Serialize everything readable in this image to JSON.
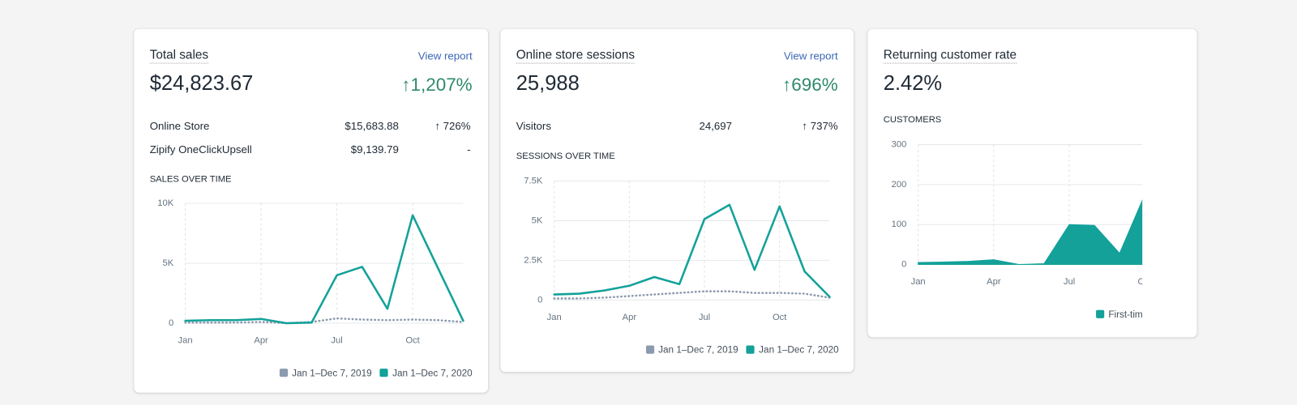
{
  "cards": [
    {
      "title": "Total sales",
      "link": "View report",
      "value": "$24,823.67",
      "change": "↑1,207%",
      "rows": [
        {
          "label": "Online Store",
          "amount": "$15,683.88",
          "change": "↑ 726%"
        },
        {
          "label": "Zipify OneClickUpsell",
          "amount": "$9,139.79",
          "change": "-"
        }
      ],
      "chart_label": "SALES OVER TIME",
      "chart": {
        "type": "line",
        "categories": [
          "Jan",
          null,
          null,
          "Apr",
          null,
          null,
          "Jul",
          null,
          null,
          "Oct",
          null,
          null
        ],
        "series": [
          {
            "name": "Jan 1–Dec 7, 2019",
            "color": "#8c9aad",
            "style": "dotted",
            "values": [
              50,
              50,
              50,
              100,
              0,
              100,
              400,
              300,
              250,
              300,
              250,
              100
            ]
          },
          {
            "name": "Jan 1–Dec 7, 2020",
            "color": "#13a19a",
            "style": "solid",
            "values": [
              200,
              250,
              250,
              350,
              0,
              50,
              4000,
              4700,
              1200,
              9000,
              4600,
              200
            ]
          }
        ],
        "ylim": [
          0,
          10000
        ],
        "yticks": [
          0,
          {
            "value": 5000,
            "label": "5K"
          },
          {
            "value": 10000,
            "label": "10K"
          }
        ],
        "grid": true
      }
    },
    {
      "title": "Online store sessions",
      "link": "View report",
      "value": "25,988",
      "change": "↑696%",
      "rows": [
        {
          "label": "Visitors",
          "amount": "24,697",
          "change": "↑ 737%"
        }
      ],
      "chart_label": "SESSIONS OVER TIME",
      "chart": {
        "type": "line",
        "categories": [
          "Jan",
          null,
          null,
          "Apr",
          null,
          null,
          "Jul",
          null,
          null,
          "Oct",
          null,
          null
        ],
        "series": [
          {
            "name": "Jan 1–Dec 7, 2019",
            "color": "#8c9aad",
            "style": "dotted",
            "values": [
              100,
              100,
              150,
              250,
              350,
              450,
              550,
              550,
              450,
              450,
              400,
              150
            ]
          },
          {
            "name": "Jan 1–Dec 7, 2020",
            "color": "#13a19a",
            "style": "solid",
            "values": [
              350,
              400,
              600,
              900,
              1450,
              1000,
              5100,
              6000,
              1900,
              5900,
              1800,
              200
            ]
          }
        ],
        "ylim": [
          0,
          7500
        ],
        "yticks": [
          0,
          {
            "value": 2500,
            "label": "2.5K"
          },
          {
            "value": 5000,
            "label": "5K"
          },
          {
            "value": 7500,
            "label": "7.5K"
          }
        ],
        "grid": true
      }
    },
    {
      "title": "Returning customer rate",
      "value": "2.42%",
      "rows": [],
      "chart_label": "CUSTOMERS",
      "chart": {
        "type": "area",
        "categories": [
          "Jan",
          null,
          null,
          "Apr",
          null,
          null,
          "Jul",
          null,
          null,
          "Oct"
        ],
        "series": [
          {
            "name": "First-time",
            "color": "#13a19a",
            "values": [
              5,
              6,
              8,
              12,
              0,
              2,
              100,
              98,
              28,
              175
            ]
          }
        ],
        "ylim": [
          0,
          300
        ],
        "yticks": [
          0,
          100,
          200,
          300
        ],
        "grid": true
      }
    }
  ]
}
